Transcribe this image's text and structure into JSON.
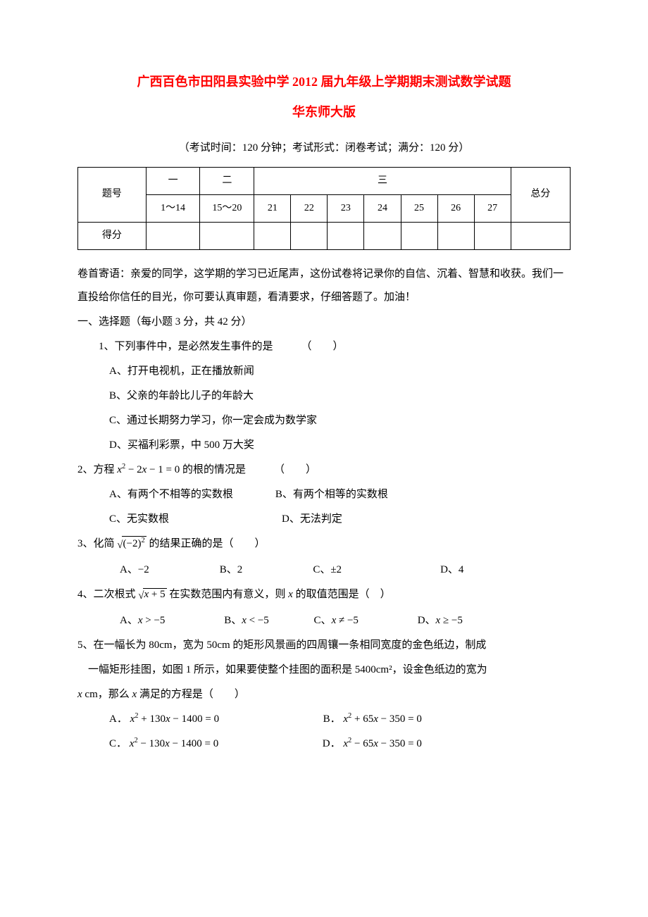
{
  "title_line1": "广西百色市田阳县实验中学 2012 届九年级上学期期末测试数学试题",
  "title_line2": "华东师大版",
  "exam_info": "（考试时间：120 分钟；考试形式：闭卷考试；满分：120 分）",
  "score_table": {
    "row_label1": "题号",
    "row_label2": "得分",
    "group1": "一",
    "group2": "二",
    "group3": "三",
    "total": "总分",
    "group1_range": "1～14",
    "group2_range": "15～20",
    "cols3": [
      "21",
      "22",
      "23",
      "24",
      "25",
      "26",
      "27"
    ]
  },
  "preface": "卷首寄语：亲爱的同学，这学期的学习已近尾声，这份试卷将记录你的自信、沉着、智慧和收获。我们一直投给你信任的目光，你可要认真审题，看清要求，仔细答题了。加油！",
  "section1_header": "一、选择题（每小题 3 分，共 42 分）",
  "q1": {
    "stem_prefix": "1、下列事件中，是必然发生事件的是",
    "paren": "（　　）",
    "A": "A、打开电视机，正在播放新闻",
    "B": "B、父亲的年龄比儿子的年龄大",
    "C": "C、通过长期努力学习，你一定会成为数学家",
    "D": "D、买福利彩票，中 500 万大奖"
  },
  "q2": {
    "prefix": "2、方程 ",
    "suffix": " 的根的情况是",
    "paren": "（　　）",
    "A": "A、有两个不相等的实数根",
    "B": "B、有两个相等的实数根",
    "C": "C、无实数根",
    "D": "D、无法判定"
  },
  "q3": {
    "prefix": "3、化简 ",
    "suffix": " 的结果正确的是（　　）",
    "A": "A、−2",
    "B": "B、2",
    "C": "C、±2",
    "D": "D、4"
  },
  "q4": {
    "prefix": "4、二次根式 ",
    "mid": " 在实数范围内有意义，则 ",
    "suffix": " 的取值范围是（　）",
    "A_lead": "A、",
    "B_lead": "B、",
    "C_lead": "C、",
    "D_lead": "D、"
  },
  "q5": {
    "line1": "5、在一幅长为 80cm，宽为 50cm 的矩形风景画的四周镶一条相同宽度的金色纸边，制成",
    "line2": "一幅矩形挂图，如图 1 所示，如果要使整个挂图的面积是 5400cm²，设金色纸边的宽为",
    "line3_prefix": " cm，那么 ",
    "line3_suffix": " 满足的方程是（　　）",
    "A_lead": "A．",
    "B_lead": "B．",
    "C_lead": "C．",
    "D_lead": "D．"
  }
}
